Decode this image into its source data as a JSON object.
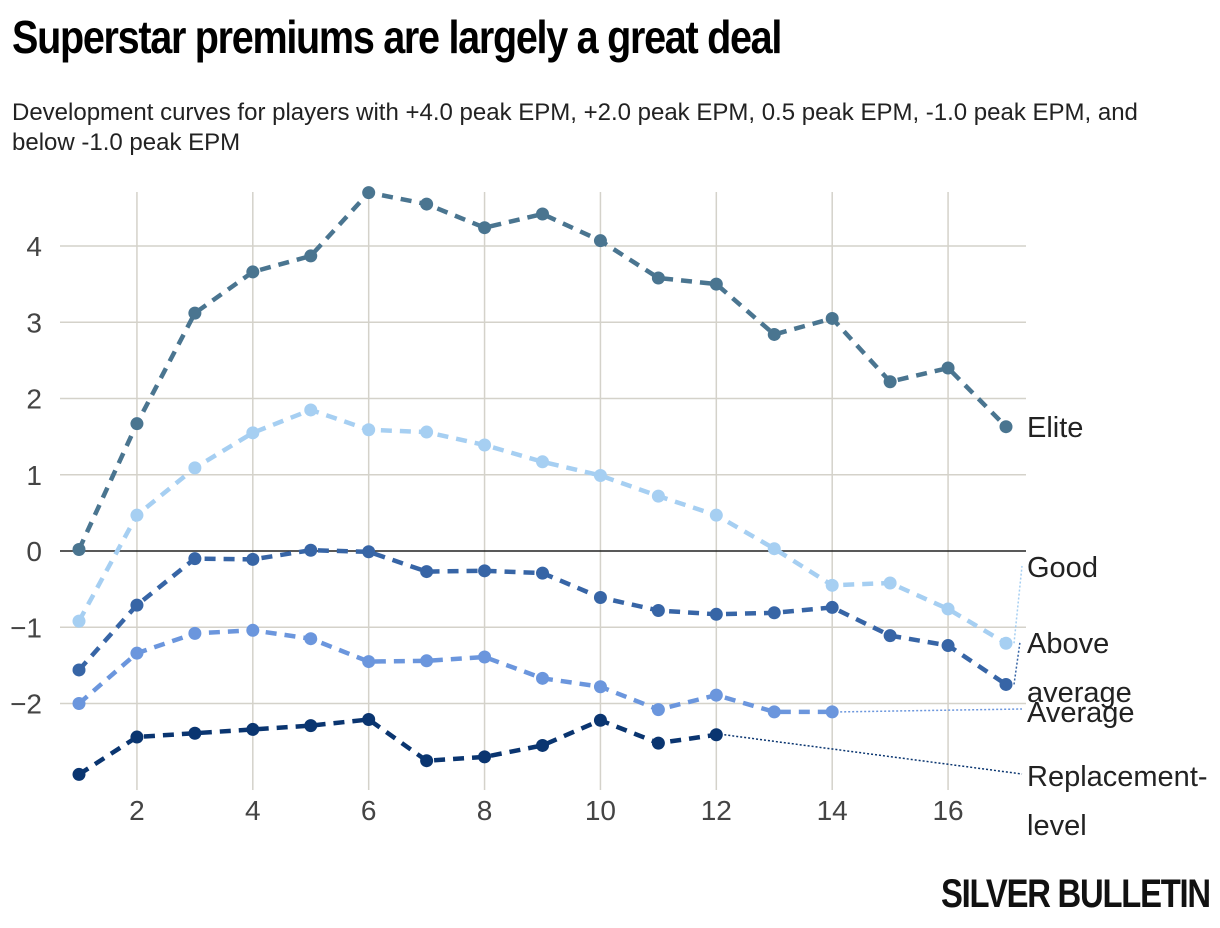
{
  "title": "Superstar premiums are largely a great deal",
  "subtitle": "Development curves for players with +4.0 peak EPM, +2.0 peak EPM, 0.5 peak EPM, -1.0 peak EPM, and below -1.0 peak EPM",
  "brand": "SILVER BULLETIN",
  "chart_data": {
    "type": "line",
    "title": "Superstar premiums are largely a great deal",
    "xlabel": "",
    "ylabel": "",
    "xlim": [
      0.7,
      17.4
    ],
    "ylim": [
      -3.05,
      4.8
    ],
    "x_ticks": [
      2,
      4,
      6,
      8,
      10,
      12,
      14,
      16
    ],
    "y_ticks": [
      -2,
      -1,
      0,
      1,
      2,
      3,
      4
    ],
    "y_tick_labels": [
      "−2",
      "−1",
      "0",
      "1",
      "2",
      "3",
      "4"
    ],
    "legend": "direct labels at right end of lines",
    "series": [
      {
        "name": "Elite",
        "label": "Elite",
        "color": "#4a7590",
        "x": [
          1,
          2,
          3,
          4,
          5,
          6,
          7,
          8,
          9,
          10,
          11,
          12,
          13,
          14,
          15,
          16,
          17
        ],
        "values": [
          0.02,
          1.67,
          3.12,
          3.66,
          3.87,
          4.7,
          4.55,
          4.24,
          4.42,
          4.07,
          3.58,
          3.5,
          2.84,
          3.05,
          2.22,
          2.4,
          1.63
        ]
      },
      {
        "name": "Good",
        "label": "Good",
        "color": "#a6cff2",
        "x": [
          1,
          2,
          3,
          4,
          5,
          6,
          7,
          8,
          9,
          10,
          11,
          12,
          13,
          14,
          15,
          16,
          17
        ],
        "values": [
          -0.92,
          0.47,
          1.09,
          1.55,
          1.85,
          1.59,
          1.56,
          1.39,
          1.17,
          0.99,
          0.72,
          0.47,
          0.03,
          -0.45,
          -0.42,
          -0.76,
          -1.21
        ]
      },
      {
        "name": "Above average",
        "label": "Above average",
        "color": "#3765a6",
        "x": [
          1,
          2,
          3,
          4,
          5,
          6,
          7,
          8,
          9,
          10,
          11,
          12,
          13,
          14,
          15,
          16,
          17
        ],
        "values": [
          -1.56,
          -0.71,
          -0.1,
          -0.11,
          0.01,
          -0.01,
          -0.27,
          -0.26,
          -0.29,
          -0.61,
          -0.78,
          -0.83,
          -0.81,
          -0.74,
          -1.11,
          -1.24,
          -1.75
        ]
      },
      {
        "name": "Average",
        "label": "Average",
        "color": "#6b96dd",
        "x": [
          1,
          2,
          3,
          4,
          5,
          6,
          7,
          8,
          9,
          10,
          11,
          12,
          13,
          14
        ],
        "values": [
          -2.0,
          -1.34,
          -1.08,
          -1.04,
          -1.15,
          -1.45,
          -1.44,
          -1.39,
          -1.67,
          -1.78,
          -2.08,
          -1.89,
          -2.11,
          -2.11
        ]
      },
      {
        "name": "Replacement-level",
        "label": "Replacement-level",
        "color": "#0a3570",
        "x": [
          1,
          2,
          3,
          4,
          5,
          6,
          7,
          8,
          9,
          10,
          11,
          12
        ],
        "values": [
          -2.93,
          -2.44,
          -2.39,
          -2.34,
          -2.29,
          -2.21,
          -2.75,
          -2.7,
          -2.55,
          -2.22,
          -2.52,
          -2.41
        ]
      }
    ]
  }
}
